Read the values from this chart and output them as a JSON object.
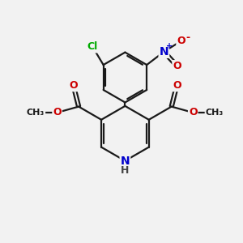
{
  "bg_color": "#f2f2f2",
  "bond_color": "#1a1a1a",
  "bond_width": 1.6,
  "atom_colors": {
    "C": "#1a1a1a",
    "N": "#0000cc",
    "O": "#cc0000",
    "Cl": "#00aa00",
    "H": "#444444"
  },
  "font_size": 9,
  "fig_size": [
    3.0,
    3.0
  ]
}
